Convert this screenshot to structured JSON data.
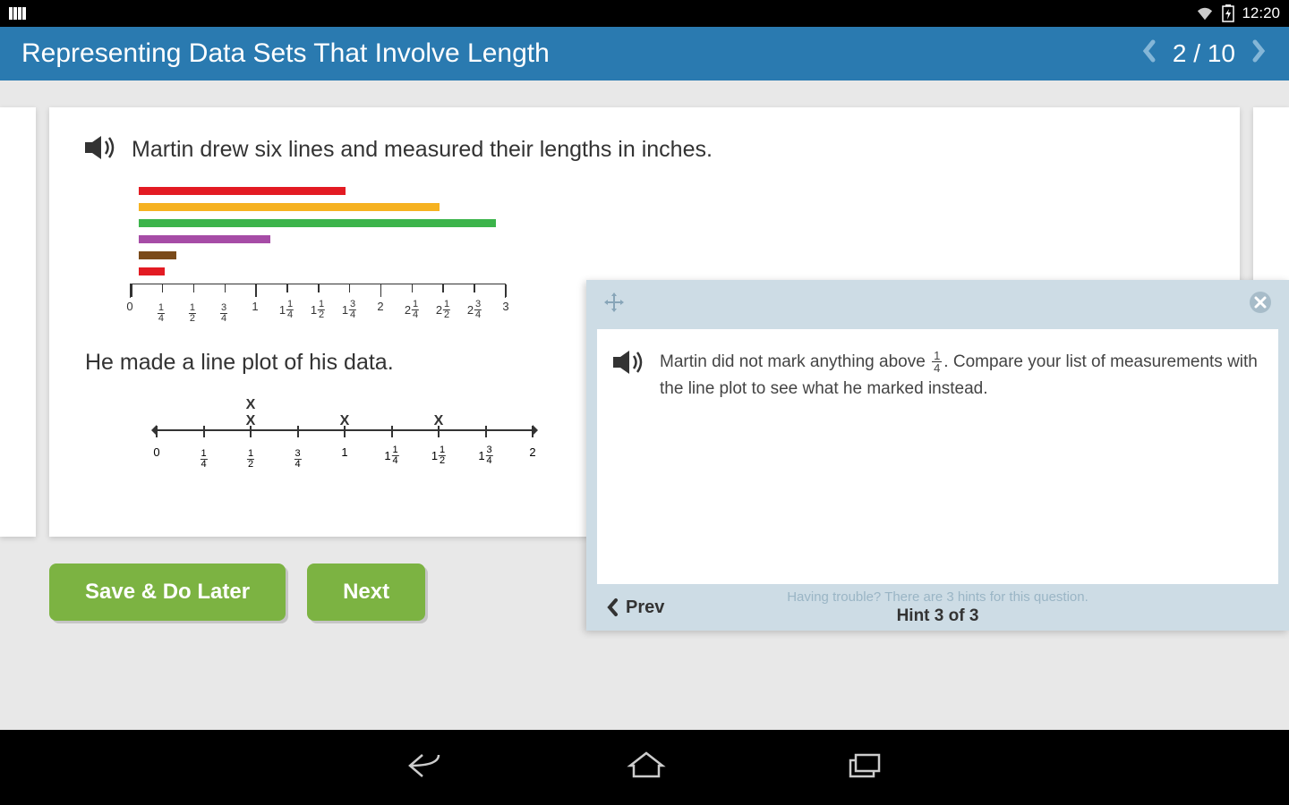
{
  "status": {
    "time": "12:20"
  },
  "header": {
    "title": "Representing Data Sets That Involve Length",
    "progress_current": "2",
    "progress_total": "10"
  },
  "question": {
    "line1": "Martin drew six lines and measured their lengths in inches.",
    "line2": "He made a line plot of his data."
  },
  "bars": [
    {
      "length_pct": 55,
      "color": "#e31b23"
    },
    {
      "length_pct": 80,
      "color": "#f6b221"
    },
    {
      "length_pct": 95,
      "color": "#3cb44b"
    },
    {
      "length_pct": 35,
      "color": "#a64ca6"
    },
    {
      "length_pct": 10,
      "color": "#7a4a1a"
    },
    {
      "length_pct": 7,
      "color": "#e31b23"
    }
  ],
  "ruler": {
    "max": 12,
    "labels": [
      "0",
      "1/4",
      "1/2",
      "3/4",
      "1",
      "1 1/4",
      "1 1/2",
      "1 3/4",
      "2",
      "2 1/4",
      "2 1/2",
      "2 3/4",
      "3"
    ]
  },
  "lineplot": {
    "labels": [
      "0",
      "1/4",
      "1/2",
      "3/4",
      "1",
      "1 1/4",
      "1 1/2",
      "1 3/4",
      "2"
    ],
    "marks": {
      "2": 2,
      "4": 1,
      "6": 1
    }
  },
  "buttons": {
    "save": "Save & Do Later",
    "next": "Next"
  },
  "hint": {
    "text_prefix": "Martin did not mark anything above ",
    "fraction_num": "1",
    "fraction_den": "4",
    "text_suffix": ". Compare your list of measurements with the line plot to see what he marked instead.",
    "prev": "Prev",
    "trouble": "Having trouble? There are 3 hints for this question.",
    "count": "Hint 3 of 3"
  },
  "colors": {
    "header_bg": "#2a7ab0",
    "btn_green": "#7cb342",
    "hint_bg": "#cddce5"
  }
}
